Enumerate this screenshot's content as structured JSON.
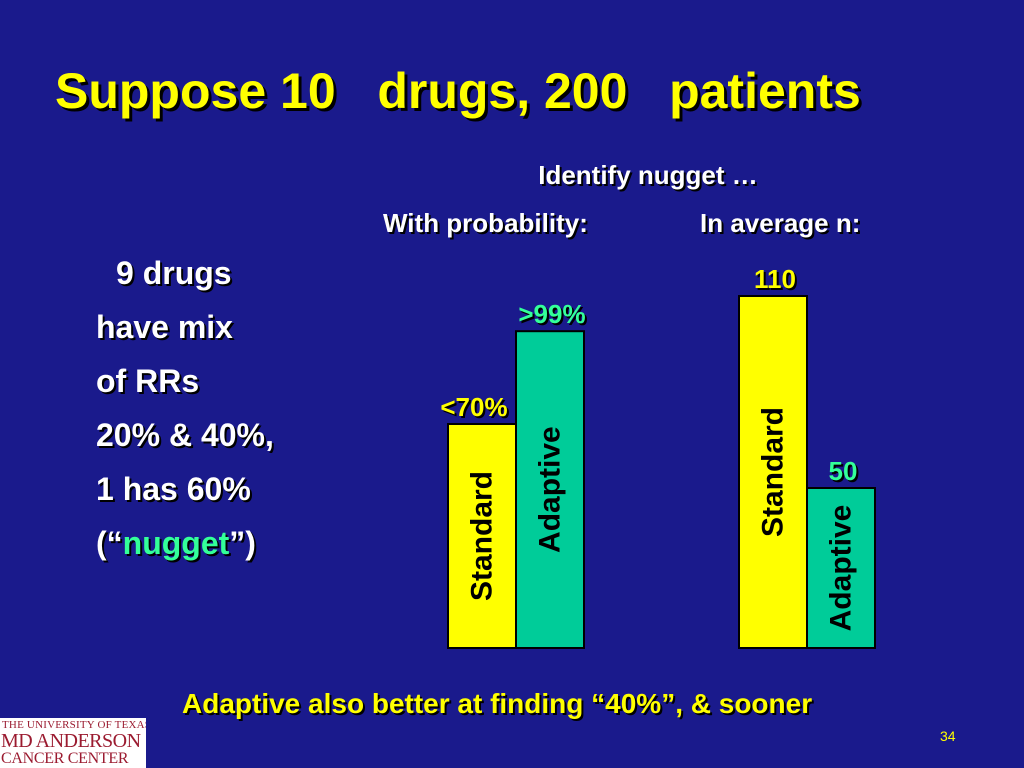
{
  "title": "Suppose 10   drugs, 200   patients",
  "subhead": "Identify nugget …",
  "column_headers": {
    "probability": "With probability:",
    "average_n": "In average n:"
  },
  "left_text": {
    "line1": "9 drugs",
    "line2": "have mix",
    "line3": "of RRs",
    "line4": "20% & 40%,",
    "line5": "1 has 60%",
    "line6_pre": "(“",
    "line6_nugget": "nugget",
    "line6_post": "”)"
  },
  "chart_data": [
    {
      "type": "bar",
      "categories": [
        "Standard",
        "Adaptive"
      ],
      "values": [
        70,
        99
      ],
      "value_labels": [
        "<70%",
        ">99%"
      ],
      "ylim": [
        0,
        125
      ],
      "colors": [
        "#ffff00",
        "#00cc99"
      ]
    },
    {
      "type": "bar",
      "categories": [
        "Standard",
        "Adaptive"
      ],
      "values": [
        110,
        50
      ],
      "value_labels": [
        "110",
        "50"
      ],
      "ylim": [
        0,
        125
      ],
      "colors": [
        "#ffff00",
        "#00cc99"
      ]
    }
  ],
  "footer": "Adaptive also better at finding “40%”, & sooner",
  "page_number": "34",
  "logo": {
    "line1": "THE UNIVERSITY OF TEXAS",
    "line2": "MD ANDERSON",
    "line3": "CANCER CENTER"
  }
}
